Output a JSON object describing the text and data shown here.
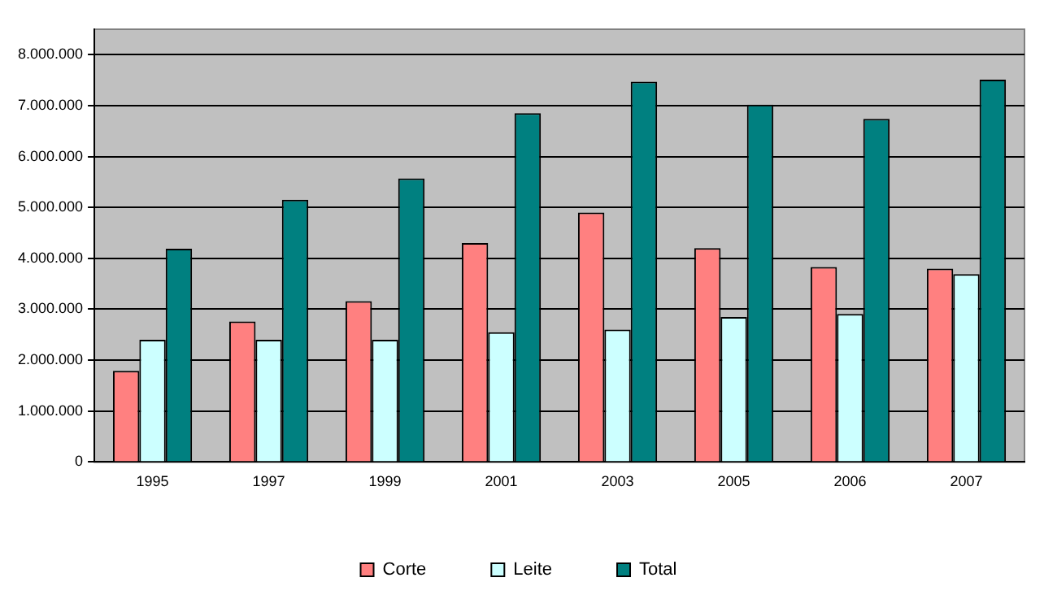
{
  "chart_data": {
    "type": "bar",
    "categories": [
      "1995",
      "1997",
      "1999",
      "2001",
      "2003",
      "2005",
      "2006",
      "2007"
    ],
    "series": [
      {
        "name": "Corte",
        "color": "#ff8080",
        "values": [
          1790000,
          2760000,
          3160000,
          4300000,
          4900000,
          4200000,
          3830000,
          3800000
        ]
      },
      {
        "name": "Leite",
        "color": "#ccffff",
        "values": [
          2400000,
          2400000,
          2400000,
          2550000,
          2600000,
          2850000,
          2910000,
          3690000
        ]
      },
      {
        "name": "Total",
        "color": "#008080",
        "values": [
          4190000,
          5150000,
          5570000,
          6850000,
          7470000,
          7020000,
          6740000,
          7510000
        ]
      }
    ],
    "ylim": [
      0,
      8500000
    ],
    "yticks": [
      {
        "value": 0,
        "label": "0"
      },
      {
        "value": 1000000,
        "label": "1.000.000"
      },
      {
        "value": 2000000,
        "label": "2.000.000"
      },
      {
        "value": 3000000,
        "label": "3.000.000"
      },
      {
        "value": 4000000,
        "label": "4.000.000"
      },
      {
        "value": 5000000,
        "label": "5.000.000"
      },
      {
        "value": 6000000,
        "label": "6.000.000"
      },
      {
        "value": 7000000,
        "label": "7.000.000"
      },
      {
        "value": 8000000,
        "label": "8.000.000"
      }
    ],
    "grid": "y",
    "legend": "bottom"
  }
}
